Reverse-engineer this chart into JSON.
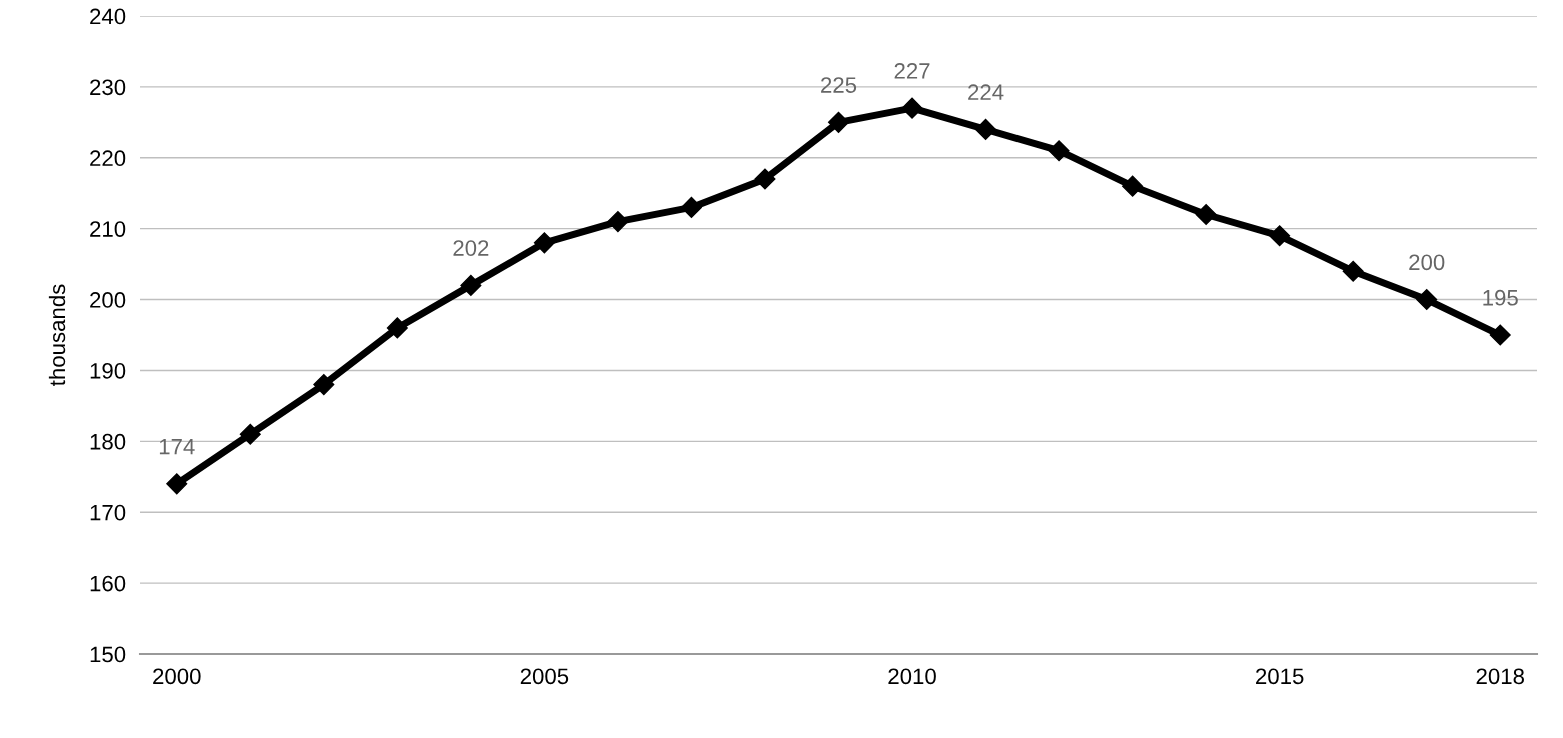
{
  "chart_data": {
    "type": "line",
    "ylabel": "thousands",
    "x": [
      2000,
      2001,
      2002,
      2003,
      2004,
      2005,
      2006,
      2007,
      2008,
      2009,
      2010,
      2011,
      2012,
      2013,
      2014,
      2015,
      2016,
      2017,
      2018
    ],
    "series": [
      {
        "color": "#000000",
        "values": [
          174,
          181,
          188,
          196,
          202,
          208,
          211,
          213,
          217,
          225,
          227,
          224,
          221,
          216,
          212,
          209,
          204,
          200,
          195
        ],
        "value_labels": [
          "174",
          null,
          null,
          null,
          "202",
          null,
          null,
          null,
          null,
          "225",
          "227",
          "224",
          null,
          null,
          null,
          null,
          null,
          "200",
          "195"
        ]
      }
    ],
    "xlim": [
      1999.5,
      2018.5
    ],
    "xticks": [
      2000,
      2005,
      2010,
      2015,
      2018
    ],
    "ylim": [
      150,
      240
    ],
    "yticks": [
      150,
      160,
      170,
      180,
      190,
      200,
      210,
      220,
      230,
      240
    ],
    "grid": "y",
    "marker": "diamond",
    "line_style": "solid",
    "legend": false
  }
}
